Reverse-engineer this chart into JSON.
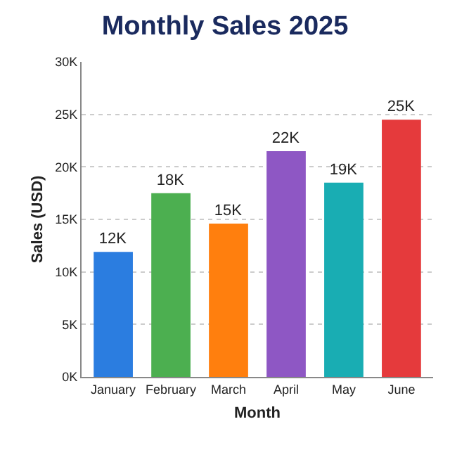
{
  "chart_data": {
    "type": "bar",
    "title": "Monthly Sales 2025",
    "xlabel": "Month",
    "ylabel": "Sales (USD)",
    "categories": [
      "January",
      "February",
      "March",
      "April",
      "May",
      "June"
    ],
    "values": [
      11900,
      17500,
      14600,
      21500,
      18500,
      24500
    ],
    "value_labels": [
      "12K",
      "18K",
      "15K",
      "22K",
      "19K",
      "25K"
    ],
    "colors": [
      "#2b7de0",
      "#4caf50",
      "#ff7f0e",
      "#8e57c4",
      "#19adb3",
      "#e53a3c"
    ],
    "ylim": [
      0,
      30000
    ],
    "yticks": [
      {
        "value": 0,
        "label": "0K"
      },
      {
        "value": 5000,
        "label": "5K"
      },
      {
        "value": 10000,
        "label": "10K"
      },
      {
        "value": 15000,
        "label": "15K"
      },
      {
        "value": 20000,
        "label": "20K"
      },
      {
        "value": 25000,
        "label": "25K"
      },
      {
        "value": 30000,
        "label": "30K"
      }
    ],
    "grid": "y"
  }
}
